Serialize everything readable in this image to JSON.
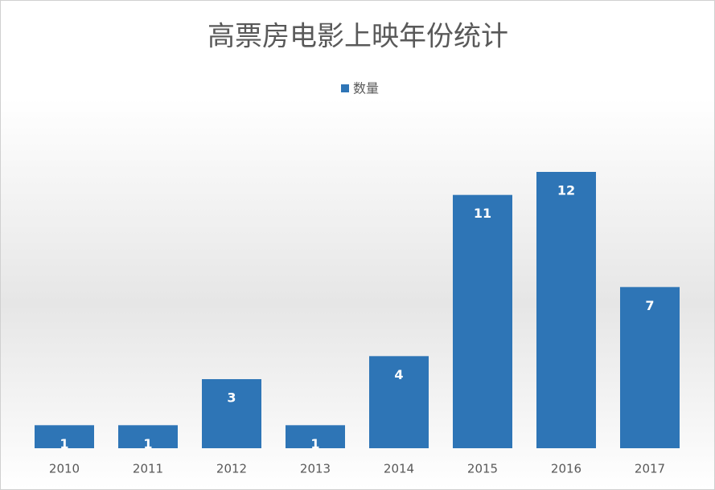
{
  "chart_data": {
    "type": "bar",
    "title": "高票房电影上映年份统计",
    "categories": [
      "2010",
      "2011",
      "2012",
      "2013",
      "2014",
      "2015",
      "2016",
      "2017"
    ],
    "series": [
      {
        "name": "数量",
        "color": "#2e75b6",
        "values": [
          1,
          1,
          3,
          1,
          4,
          11,
          12,
          7
        ]
      }
    ]
  }
}
